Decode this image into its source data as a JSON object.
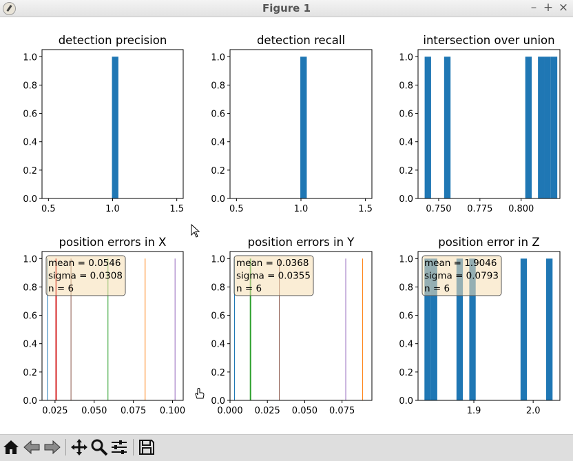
{
  "window": {
    "title": "Figure 1"
  },
  "toolbar": {
    "buttons": [
      "home-icon",
      "back-icon",
      "forward-icon",
      "pan-icon",
      "zoom-icon",
      "configure-subplots-icon",
      "save-icon"
    ]
  },
  "colors": {
    "bar": "#1f77b4",
    "c0": "#1f77b4",
    "c1": "#ff7f0e",
    "c2": "#2ca02c",
    "c3": "#d62728",
    "c4": "#9467bd",
    "c5": "#8c564b",
    "box_fill": "#f5deb3",
    "box_edge": "#555555"
  },
  "chart_data": [
    {
      "type": "bar",
      "title": "detection precision",
      "xlim": [
        0.45,
        1.55
      ],
      "ylim": [
        0,
        1.05
      ],
      "xticks": [
        0.5,
        1.0,
        1.5
      ],
      "xtick_labels": [
        "0.5",
        "1.0",
        "1.5"
      ],
      "yticks": [
        0,
        0.2,
        0.4,
        0.6,
        0.8,
        1.0
      ],
      "ytick_labels": [
        "0.0",
        "0.2",
        "0.4",
        "0.6",
        "0.8",
        "1.0"
      ],
      "bars": [
        {
          "x0": 0.995,
          "x1": 1.045,
          "value": 1
        }
      ]
    },
    {
      "type": "bar",
      "title": "detection recall",
      "xlim": [
        0.45,
        1.55
      ],
      "ylim": [
        0,
        1.05
      ],
      "xticks": [
        0.5,
        1.0,
        1.5
      ],
      "xtick_labels": [
        "0.5",
        "1.0",
        "1.5"
      ],
      "yticks": [
        0,
        0.2,
        0.4,
        0.6,
        0.8,
        1.0
      ],
      "ytick_labels": [
        "0.0",
        "0.2",
        "0.4",
        "0.6",
        "0.8",
        "1.0"
      ],
      "bars": [
        {
          "x0": 0.995,
          "x1": 1.045,
          "value": 1
        }
      ]
    },
    {
      "type": "bar",
      "title": "intersection over union",
      "xlim": [
        0.7375,
        0.8235
      ],
      "ylim": [
        0,
        1.05
      ],
      "xticks": [
        0.75,
        0.775,
        0.8
      ],
      "xtick_labels": [
        "0.750",
        "0.775",
        "0.800"
      ],
      "yticks": [
        0,
        0.2,
        0.4,
        0.6,
        0.8,
        1.0
      ],
      "ytick_labels": [
        "0.0",
        "0.2",
        "0.4",
        "0.6",
        "0.8",
        "1.0"
      ],
      "bars": [
        {
          "x0": 0.7415,
          "x1": 0.7454,
          "value": 1
        },
        {
          "x0": 0.7533,
          "x1": 0.7572,
          "value": 1
        },
        {
          "x0": 0.8025,
          "x1": 0.8064,
          "value": 1
        },
        {
          "x0": 0.8102,
          "x1": 0.8141,
          "value": 1
        },
        {
          "x0": 0.8141,
          "x1": 0.818,
          "value": 1
        },
        {
          "x0": 0.818,
          "x1": 0.8219,
          "value": 1
        }
      ]
    },
    {
      "type": "bar",
      "title": "position errors in X",
      "xlim": [
        0.0167,
        0.1068
      ],
      "ylim": [
        0,
        1.05
      ],
      "xticks": [
        0.025,
        0.05,
        0.075,
        0.1
      ],
      "xtick_labels": [
        "0.025",
        "0.050",
        "0.075",
        "0.100"
      ],
      "yticks": [
        0,
        0.2,
        0.4,
        0.6,
        0.8,
        1.0
      ],
      "ytick_labels": [
        "0.0",
        "0.2",
        "0.4",
        "0.6",
        "0.8",
        "1.0"
      ],
      "lines": [
        {
          "x": 0.0202,
          "value": 1,
          "color": "c0",
          "width": 1
        },
        {
          "x": 0.0257,
          "value": 1,
          "color": "c3",
          "width": 2
        },
        {
          "x": 0.0352,
          "value": 1,
          "color": "c5",
          "width": 1
        },
        {
          "x": 0.0588,
          "value": 1,
          "color": "c2",
          "width": 1
        },
        {
          "x": 0.0825,
          "value": 1,
          "color": "c1",
          "width": 1
        },
        {
          "x": 0.1016,
          "value": 1,
          "color": "c4",
          "width": 1
        }
      ],
      "stats": {
        "mean": "0.0546",
        "sigma": "0.0308",
        "n": "6"
      }
    },
    {
      "type": "bar",
      "title": "position errors in Y",
      "xlim": [
        0.0,
        0.095
      ],
      "ylim": [
        0,
        1.05
      ],
      "xticks": [
        0.0,
        0.025,
        0.05,
        0.075
      ],
      "xtick_labels": [
        "0.000",
        "0.025",
        "0.050",
        "0.075"
      ],
      "yticks": [
        0,
        0.2,
        0.4,
        0.6,
        0.8,
        1.0
      ],
      "ytick_labels": [
        "0.0",
        "0.2",
        "0.4",
        "0.6",
        "0.8",
        "1.0"
      ],
      "lines": [
        {
          "x": 0.003,
          "value": 1,
          "color": "c0",
          "width": 1
        },
        {
          "x": 0.0137,
          "value": 1,
          "color": "c2",
          "width": 2
        },
        {
          "x": 0.033,
          "value": 1,
          "color": "c5",
          "width": 1
        },
        {
          "x": 0.0775,
          "value": 1,
          "color": "c4",
          "width": 1
        },
        {
          "x": 0.0888,
          "value": 1,
          "color": "c1",
          "width": 1
        }
      ],
      "stats": {
        "mean": "0.0368",
        "sigma": "0.0355",
        "n": "6"
      }
    },
    {
      "type": "bar",
      "title": "position error in Z",
      "xlim": [
        1.8059,
        2.0451
      ],
      "ylim": [
        0,
        1.05
      ],
      "xticks": [
        1.9,
        2.0
      ],
      "xtick_labels": [
        "1.9",
        "2.0"
      ],
      "yticks": [
        0,
        0.2,
        0.4,
        0.6,
        0.8,
        1.0
      ],
      "ytick_labels": [
        "0.0",
        "0.2",
        "0.4",
        "0.6",
        "0.8",
        "1.0"
      ],
      "bars": [
        {
          "x0": 1.8167,
          "x1": 1.8275,
          "value": 1
        },
        {
          "x0": 1.8275,
          "x1": 1.8383,
          "value": 1
        },
        {
          "x0": 1.8707,
          "x1": 1.8815,
          "value": 1
        },
        {
          "x0": 1.8923,
          "x1": 1.9031,
          "value": 1
        },
        {
          "x0": 1.9787,
          "x1": 1.9895,
          "value": 1
        },
        {
          "x0": 2.0219,
          "x1": 2.0327,
          "value": 1
        }
      ],
      "stats": {
        "mean": "1.9046",
        "sigma": "0.0793",
        "n": "6"
      }
    }
  ]
}
